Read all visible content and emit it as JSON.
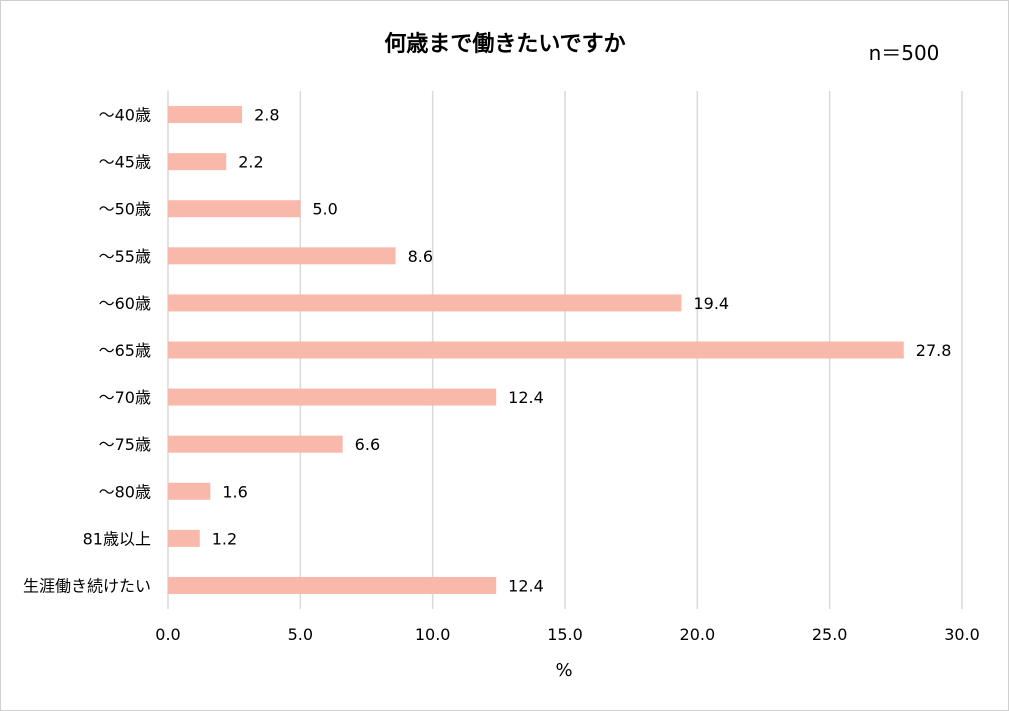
{
  "chart_data": {
    "type": "bar",
    "orientation": "horizontal",
    "title": "何歳まで働きたいですか",
    "sample_note": "n＝500",
    "categories": [
      "～40歳",
      "～45歳",
      "～50歳",
      "～55歳",
      "～60歳",
      "～65歳",
      "～70歳",
      "～75歳",
      "～80歳",
      "81歳以上",
      "生涯働き続けたい"
    ],
    "values": [
      2.8,
      2.2,
      5.0,
      8.6,
      19.4,
      27.8,
      12.4,
      6.6,
      1.6,
      1.2,
      12.4
    ],
    "data_labels": [
      "2.8",
      "2.2",
      "5.0",
      "8.6",
      "19.4",
      "27.8",
      "12.4",
      "6.6",
      "1.6",
      "1.2",
      "12.4"
    ],
    "xlabel": "%",
    "ylabel": "",
    "xlim": [
      0,
      30
    ],
    "x_ticks": [
      0,
      5,
      10,
      15,
      20,
      25,
      30
    ],
    "x_tick_labels": [
      "0.0",
      "5.0",
      "10.0",
      "15.0",
      "20.0",
      "25.0",
      "30.0"
    ],
    "grid": true,
    "legend": "none",
    "colors": {
      "bar": "#f8b9ab",
      "grid": "#d9d9d9",
      "text": "#000000"
    }
  }
}
